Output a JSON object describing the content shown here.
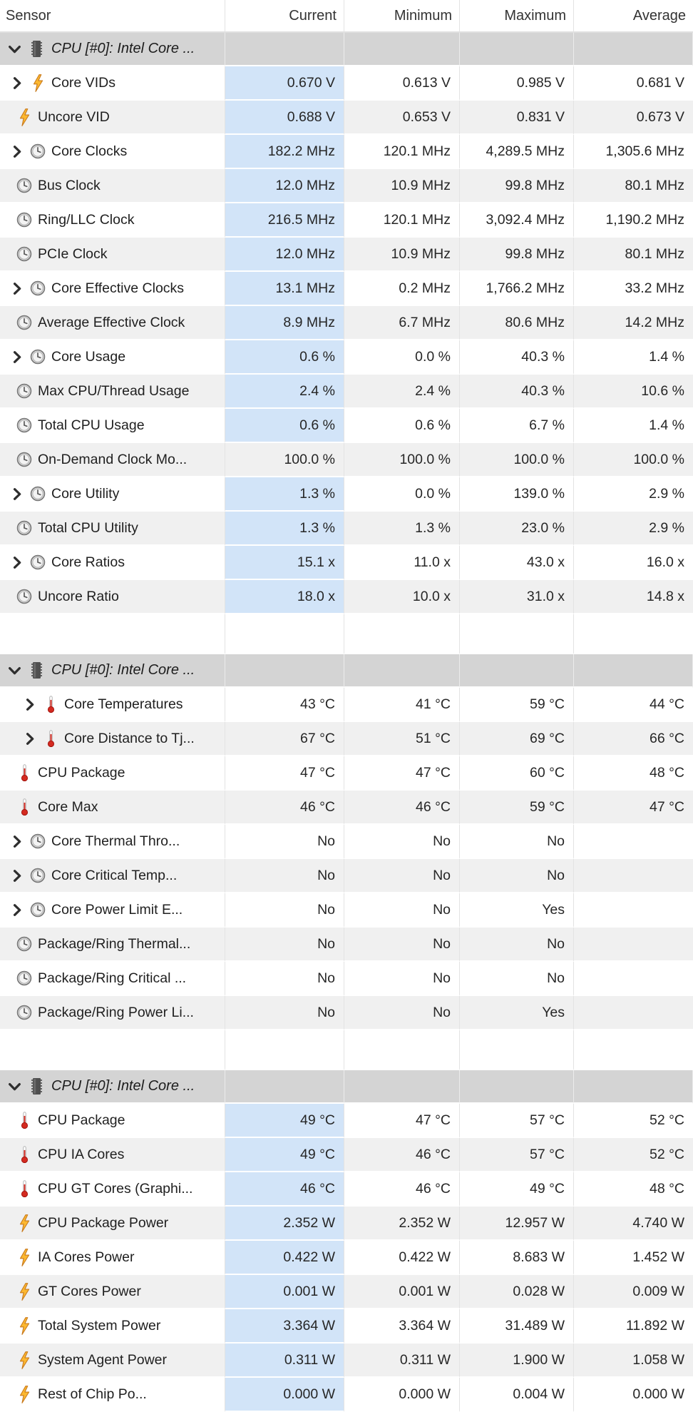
{
  "header": {
    "columns": [
      "Sensor",
      "Current",
      "Minimum",
      "Maximum",
      "Average"
    ]
  },
  "colors": {
    "current_highlight": "#d2e4f8",
    "row_stripe": "#f0f0f0",
    "section_header_bg": "#d4d4d4",
    "gridline": "#e3e3e3",
    "bolt_icon": "#fcb830",
    "thermometer_icon": "#d42a20",
    "clock_icon": "#777777"
  },
  "sections": [
    {
      "title": "CPU [#0]: Intel Core ...",
      "rows": [
        {
          "label": "Core VIDs",
          "icon": "bolt",
          "expandable": true,
          "highlight": true,
          "values": [
            "0.670 V",
            "0.613 V",
            "0.985 V",
            "0.681 V"
          ]
        },
        {
          "label": "Uncore VID",
          "icon": "bolt",
          "expandable": false,
          "highlight": true,
          "values": [
            "0.688 V",
            "0.653 V",
            "0.831 V",
            "0.673 V"
          ]
        },
        {
          "label": "Core Clocks",
          "icon": "clock",
          "expandable": true,
          "highlight": true,
          "values": [
            "182.2 MHz",
            "120.1 MHz",
            "4,289.5 MHz",
            "1,305.6 MHz"
          ]
        },
        {
          "label": "Bus Clock",
          "icon": "clock",
          "expandable": false,
          "highlight": true,
          "values": [
            "12.0 MHz",
            "10.9 MHz",
            "99.8 MHz",
            "80.1 MHz"
          ]
        },
        {
          "label": "Ring/LLC Clock",
          "icon": "clock",
          "expandable": false,
          "highlight": true,
          "values": [
            "216.5 MHz",
            "120.1 MHz",
            "3,092.4 MHz",
            "1,190.2 MHz"
          ]
        },
        {
          "label": "PCIe Clock",
          "icon": "clock",
          "expandable": false,
          "highlight": true,
          "values": [
            "12.0 MHz",
            "10.9 MHz",
            "99.8 MHz",
            "80.1 MHz"
          ]
        },
        {
          "label": "Core Effective Clocks",
          "icon": "clock",
          "expandable": true,
          "highlight": true,
          "values": [
            "13.1 MHz",
            "0.2 MHz",
            "1,766.2 MHz",
            "33.2 MHz"
          ]
        },
        {
          "label": "Average Effective Clock",
          "icon": "clock",
          "expandable": false,
          "highlight": true,
          "values": [
            "8.9 MHz",
            "6.7 MHz",
            "80.6 MHz",
            "14.2 MHz"
          ]
        },
        {
          "label": "Core Usage",
          "icon": "clock",
          "expandable": true,
          "highlight": true,
          "values": [
            "0.6 %",
            "0.0 %",
            "40.3 %",
            "1.4 %"
          ]
        },
        {
          "label": "Max CPU/Thread Usage",
          "icon": "clock",
          "expandable": false,
          "highlight": true,
          "values": [
            "2.4 %",
            "2.4 %",
            "40.3 %",
            "10.6 %"
          ]
        },
        {
          "label": "Total CPU Usage",
          "icon": "clock",
          "expandable": false,
          "highlight": true,
          "values": [
            "0.6 %",
            "0.6 %",
            "6.7 %",
            "1.4 %"
          ]
        },
        {
          "label": "On-Demand Clock Mo...",
          "icon": "clock",
          "expandable": false,
          "highlight": false,
          "values": [
            "100.0 %",
            "100.0 %",
            "100.0 %",
            "100.0 %"
          ]
        },
        {
          "label": "Core Utility",
          "icon": "clock",
          "expandable": true,
          "highlight": true,
          "values": [
            "1.3 %",
            "0.0 %",
            "139.0 %",
            "2.9 %"
          ]
        },
        {
          "label": "Total CPU Utility",
          "icon": "clock",
          "expandable": false,
          "highlight": true,
          "values": [
            "1.3 %",
            "1.3 %",
            "23.0 %",
            "2.9 %"
          ]
        },
        {
          "label": "Core Ratios",
          "icon": "clock",
          "expandable": true,
          "highlight": true,
          "values": [
            "15.1 x",
            "11.0 x",
            "43.0 x",
            "16.0 x"
          ]
        },
        {
          "label": "Uncore Ratio",
          "icon": "clock",
          "expandable": false,
          "highlight": true,
          "values": [
            "18.0 x",
            "10.0 x",
            "31.0 x",
            "14.8 x"
          ]
        }
      ]
    },
    {
      "title": "CPU [#0]: Intel Core ...",
      "rows": [
        {
          "label": "Core Temperatures",
          "icon": "thermometer",
          "expandable": true,
          "indent": true,
          "highlight": false,
          "values": [
            "43 °C",
            "41 °C",
            "59 °C",
            "44 °C"
          ]
        },
        {
          "label": "Core Distance to Tj...",
          "icon": "thermometer",
          "expandable": true,
          "indent": true,
          "highlight": false,
          "values": [
            "67 °C",
            "51 °C",
            "69 °C",
            "66 °C"
          ]
        },
        {
          "label": "CPU Package",
          "icon": "thermometer",
          "expandable": false,
          "highlight": false,
          "values": [
            "47 °C",
            "47 °C",
            "60 °C",
            "48 °C"
          ]
        },
        {
          "label": "Core Max",
          "icon": "thermometer",
          "expandable": false,
          "highlight": false,
          "values": [
            "46 °C",
            "46 °C",
            "59 °C",
            "47 °C"
          ]
        },
        {
          "label": "Core Thermal Thro...",
          "icon": "clock",
          "expandable": true,
          "highlight": false,
          "values": [
            "No",
            "No",
            "No",
            ""
          ]
        },
        {
          "label": "Core Critical Temp...",
          "icon": "clock",
          "expandable": true,
          "highlight": false,
          "values": [
            "No",
            "No",
            "No",
            ""
          ]
        },
        {
          "label": "Core Power Limit E...",
          "icon": "clock",
          "expandable": true,
          "highlight": false,
          "values": [
            "No",
            "No",
            "Yes",
            ""
          ]
        },
        {
          "label": "Package/Ring Thermal...",
          "icon": "clock",
          "expandable": false,
          "highlight": false,
          "values": [
            "No",
            "No",
            "No",
            ""
          ]
        },
        {
          "label": "Package/Ring Critical ...",
          "icon": "clock",
          "expandable": false,
          "highlight": false,
          "values": [
            "No",
            "No",
            "No",
            ""
          ]
        },
        {
          "label": "Package/Ring Power Li...",
          "icon": "clock",
          "expandable": false,
          "highlight": false,
          "values": [
            "No",
            "No",
            "Yes",
            ""
          ]
        }
      ]
    },
    {
      "title": "CPU [#0]: Intel Core ...",
      "rows": [
        {
          "label": "CPU Package",
          "icon": "thermometer",
          "expandable": false,
          "highlight": true,
          "values": [
            "49 °C",
            "47 °C",
            "57 °C",
            "52 °C"
          ]
        },
        {
          "label": "CPU IA Cores",
          "icon": "thermometer",
          "expandable": false,
          "highlight": true,
          "values": [
            "49 °C",
            "46 °C",
            "57 °C",
            "52 °C"
          ]
        },
        {
          "label": "CPU GT Cores (Graphi...",
          "icon": "thermometer",
          "expandable": false,
          "highlight": true,
          "values": [
            "46 °C",
            "46 °C",
            "49 °C",
            "48 °C"
          ]
        },
        {
          "label": "CPU Package Power",
          "icon": "bolt",
          "expandable": false,
          "highlight": true,
          "values": [
            "2.352 W",
            "2.352 W",
            "12.957 W",
            "4.740 W"
          ]
        },
        {
          "label": "IA Cores Power",
          "icon": "bolt",
          "expandable": false,
          "highlight": true,
          "values": [
            "0.422 W",
            "0.422 W",
            "8.683 W",
            "1.452 W"
          ]
        },
        {
          "label": "GT Cores Power",
          "icon": "bolt",
          "expandable": false,
          "highlight": true,
          "values": [
            "0.001 W",
            "0.001 W",
            "0.028 W",
            "0.009 W"
          ]
        },
        {
          "label": "Total System Power",
          "icon": "bolt",
          "expandable": false,
          "highlight": true,
          "values": [
            "3.364 W",
            "3.364 W",
            "31.489 W",
            "11.892 W"
          ]
        },
        {
          "label": "System Agent Power",
          "icon": "bolt",
          "expandable": false,
          "highlight": true,
          "values": [
            "0.311 W",
            "0.311 W",
            "1.900 W",
            "1.058 W"
          ]
        },
        {
          "label": "Rest of Chip Po...",
          "icon": "bolt",
          "expandable": false,
          "highlight": true,
          "values": [
            "0.000 W",
            "0.000 W",
            "0.004 W",
            "0.000 W"
          ]
        }
      ]
    }
  ]
}
